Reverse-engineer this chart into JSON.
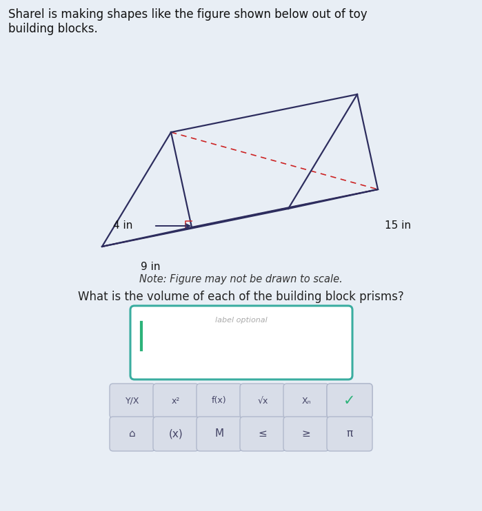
{
  "title_text": "Sharel is making shapes like the figure shown below out of toy\nbuilding blocks.",
  "note_text": "Note: Figure may not be drawn to scale.",
  "question_text": "What is the volume of each of the building block prisms?",
  "label_optional_text": "label optional",
  "dim_4in": "4 in",
  "dim_9in": "9 in",
  "dim_15in": "15 in",
  "bg_color": "#e8eef5",
  "prism_color": "#2d2d5e",
  "dashed_color": "#cc2222",
  "input_box_color": "#3aada0",
  "button_color": "#c8d0e0",
  "check_color": "#2db37a",
  "title_fontsize": 12,
  "note_fontsize": 10.5,
  "question_fontsize": 12
}
